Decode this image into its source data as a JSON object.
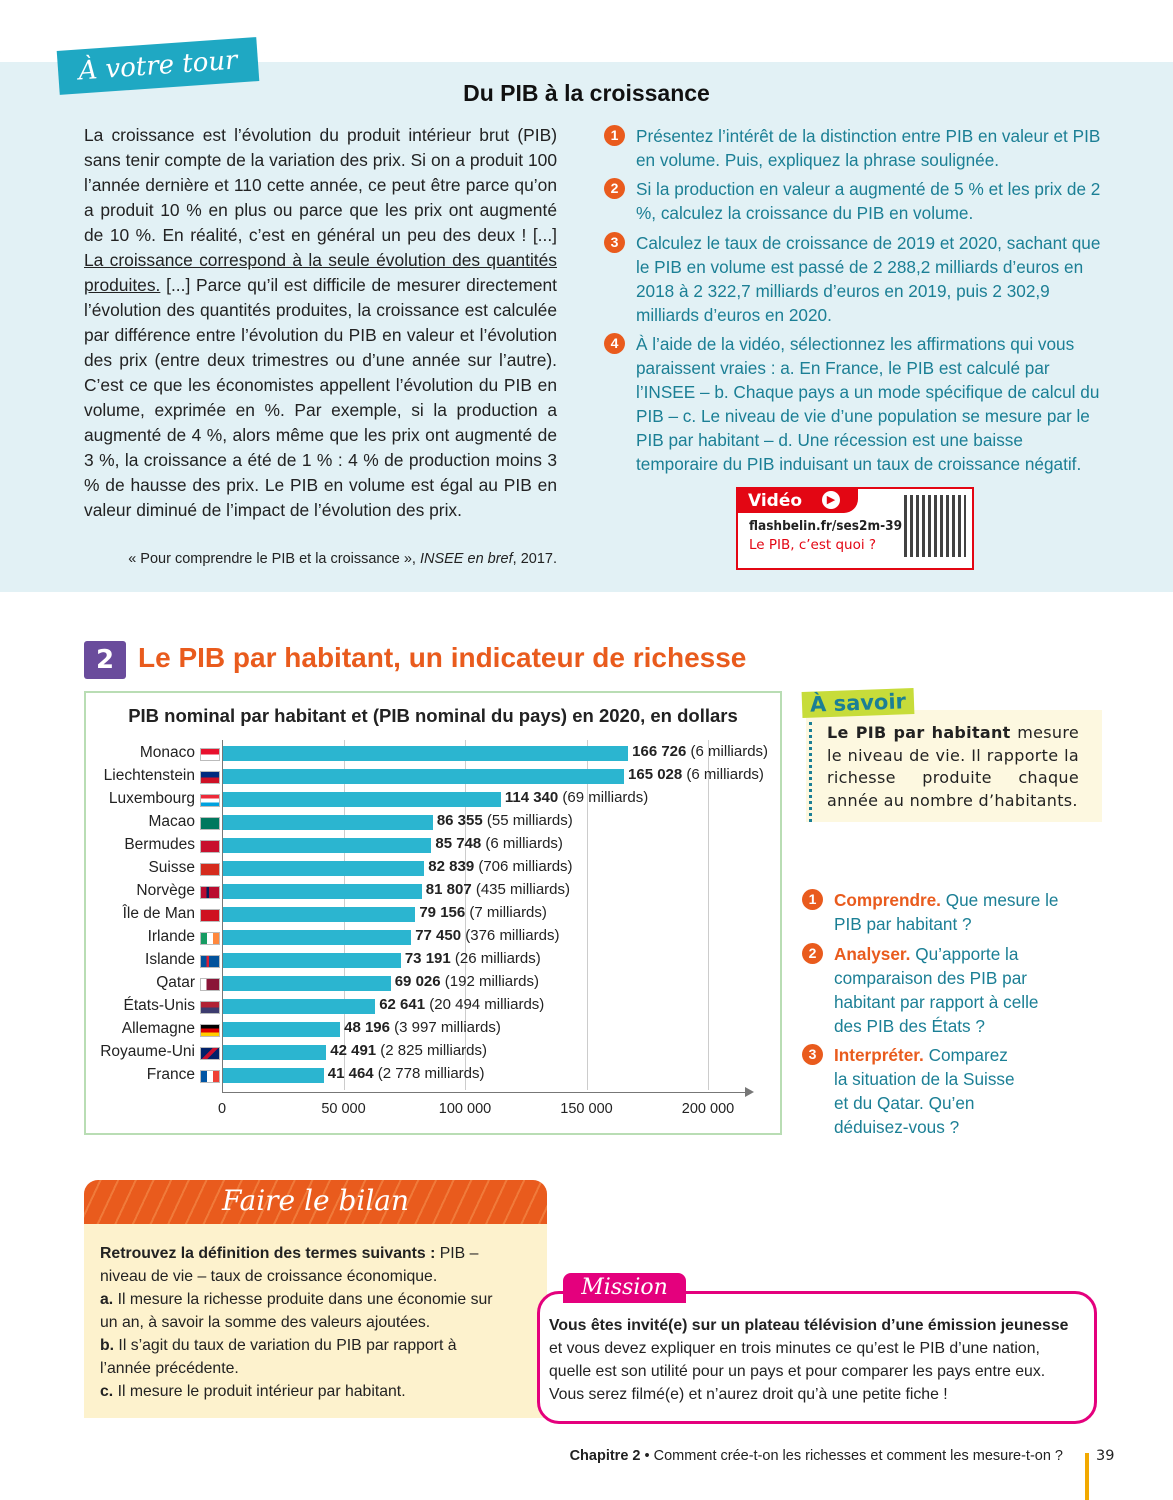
{
  "banner": {
    "tag": "À votre tour",
    "title": "Du PIB à la croissance"
  },
  "text": {
    "p1": "La croissance est l’évolution du produit intérieur brut (PIB) sans tenir compte de la variation des prix. Si on a produit 100 l’année dernière et 110 cette année, ce peut être parce qu’on a produit 10 % en plus ou parce que les prix ont augmenté de 10 %. En réalité, c’est en général un peu des deux ! [...] ",
    "underlined": "La croissance correspond à la seule évolution des quantités produites.",
    "p2": " [...] Parce qu’il est difficile de mesurer directement l’évolution des quantités produites, la croissance est calculée par différence entre l’évolution du PIB en valeur et l’évolution des prix (entre deux trimestres ou d’une année sur l’autre). C’est ce que les économistes appellent l’évolution du PIB en volume, exprimée en %. Par exemple, si la production a augmenté de 4 %, alors même que les prix ont augmenté de 3 %, la croissance a été de 1 % : 4 % de production moins 3 % de hausse des prix. Le PIB en volume est égal au PIB en valeur diminué de l’impact de l’évolution des prix.",
    "source_a": "« Pour comprendre le PIB et la croissance », ",
    "source_b": "INSEE en bref",
    "source_c": ", 2017."
  },
  "questions": [
    {
      "n": "1",
      "text": "Présentez l’intérêt de la distinction entre PIB en valeur et PIB en volume. Puis, expliquez la phrase soulignée."
    },
    {
      "n": "2",
      "text": "Si la production en valeur a augmenté de 5 % et les prix de 2 %, calculez la croissance du PIB en volume."
    },
    {
      "n": "3",
      "text": "Calculez le taux de croissance de 2019 et 2020, sachant que le PIB en volume est passé de 2 288,2 milliards d’euros en 2018 à 2 322,7 milliards d’euros en 2019, puis 2 302,9 milliards d’euros en 2020."
    },
    {
      "n": "4",
      "text": "À l’aide de la vidéo, sélectionnez les affirmations qui vous paraissent vraies : a. En France, le PIB est calculé par l’INSEE – b. Chaque pays a un mode spécifique de calcul du PIB – c. Le niveau de vie d’une population se mesure par le PIB par habitant – d. Une récession est une baisse temporaire du PIB induisant un taux de croissance négatif."
    }
  ],
  "video": {
    "label": "Vidéo",
    "url": "flashbelin.fr/ses2m-39",
    "title": "Le PIB, c’est quoi ?",
    "icon": "play-icon"
  },
  "section2": {
    "number": "2",
    "title": "Le PIB par habitant, un indicateur de richesse"
  },
  "chart_data": {
    "type": "bar",
    "orientation": "horizontal",
    "title": "PIB nominal par habitant et (PIB nominal du pays) en 2020, en dollars",
    "categories": [
      "Monaco",
      "Liechtenstein",
      "Luxembourg",
      "Macao",
      "Bermudes",
      "Suisse",
      "Norvège",
      "Île de Man",
      "Irlande",
      "Islande",
      "Qatar",
      "États-Unis",
      "Allemagne",
      "Royaume-Uni",
      "France"
    ],
    "values": [
      166726,
      165028,
      114340,
      86355,
      85748,
      82839,
      81807,
      79156,
      77450,
      73191,
      69026,
      62641,
      48196,
      42491,
      41464
    ],
    "value_labels": [
      "166 726",
      "165 028",
      "114 340",
      "86 355",
      "85 748",
      "82 839",
      "81 807",
      "79 156",
      "77 450",
      "73 191",
      "69 026",
      "62 641",
      "48 196",
      "42 491",
      "41 464"
    ],
    "annotations": [
      "(6 milliards)",
      "(6 milliards)",
      "(69 milliards)",
      "(55 milliards)",
      "(6 milliards)",
      "(706 milliards)",
      "(435 milliards)",
      "(7 milliards)",
      "(376 milliards)",
      "(26 milliards)",
      "(192 milliards)",
      "(20 494 milliards)",
      "(3 997 milliards)",
      "(2 825 milliards)",
      "(2 778 milliards)"
    ],
    "xlim": [
      0,
      200000
    ],
    "xticks": [
      "0",
      "50 000",
      "100 000",
      "150 000",
      "200 000"
    ],
    "grid": true,
    "bar_color": "#2bb5d0"
  },
  "asavoir": {
    "tag": "À savoir",
    "bold": "Le PIB par habitant",
    "text": " mesure le niveau de vie. Il rapporte la richesse produite chaque année au nombre d’habitants."
  },
  "s2questions": [
    {
      "n": "1",
      "label": "Comprendre.",
      "text": " Que mesure le PIB par habitant ?"
    },
    {
      "n": "2",
      "label": "Analyser.",
      "text": " Qu’apporte la comparaison des PIB par habitant par rapport à celle des PIB des États ?"
    },
    {
      "n": "3",
      "label": "Interpréter.",
      "text": " Comparez la situation de la Suisse et du Qatar. Qu’en déduisez-vous ?"
    }
  ],
  "bilan": {
    "title": "Faire le bilan",
    "intro": "Retrouvez la définition des termes suivants :",
    "terms": " PIB – niveau de vie – taux de croissance économique.",
    "items": [
      {
        "k": "a.",
        "t": " Il mesure la richesse produite dans une économie sur un an, à savoir la somme des valeurs ajoutées."
      },
      {
        "k": "b.",
        "t": " Il s’agit du taux de variation du PIB par rapport à l’année précédente."
      },
      {
        "k": "c.",
        "t": " Il mesure le produit intérieur par habitant."
      }
    ]
  },
  "mission": {
    "tag": "Mission",
    "bold": "Vous êtes invité(e) sur un plateau télévision d’une émission jeunesse",
    "text": " et vous devez expliquer en trois minutes ce qu’est le PIB d’une nation, quelle est son utilité pour un pays et pour comparer les pays entre eux. Vous serez filmé(e) et n’aurez droit qu’à une petite fiche !"
  },
  "footer": {
    "chapter": "Chapitre 2",
    "title": " • Comment crée-t-on les richesses et comment les mesure-t-on ?",
    "page": "39"
  }
}
